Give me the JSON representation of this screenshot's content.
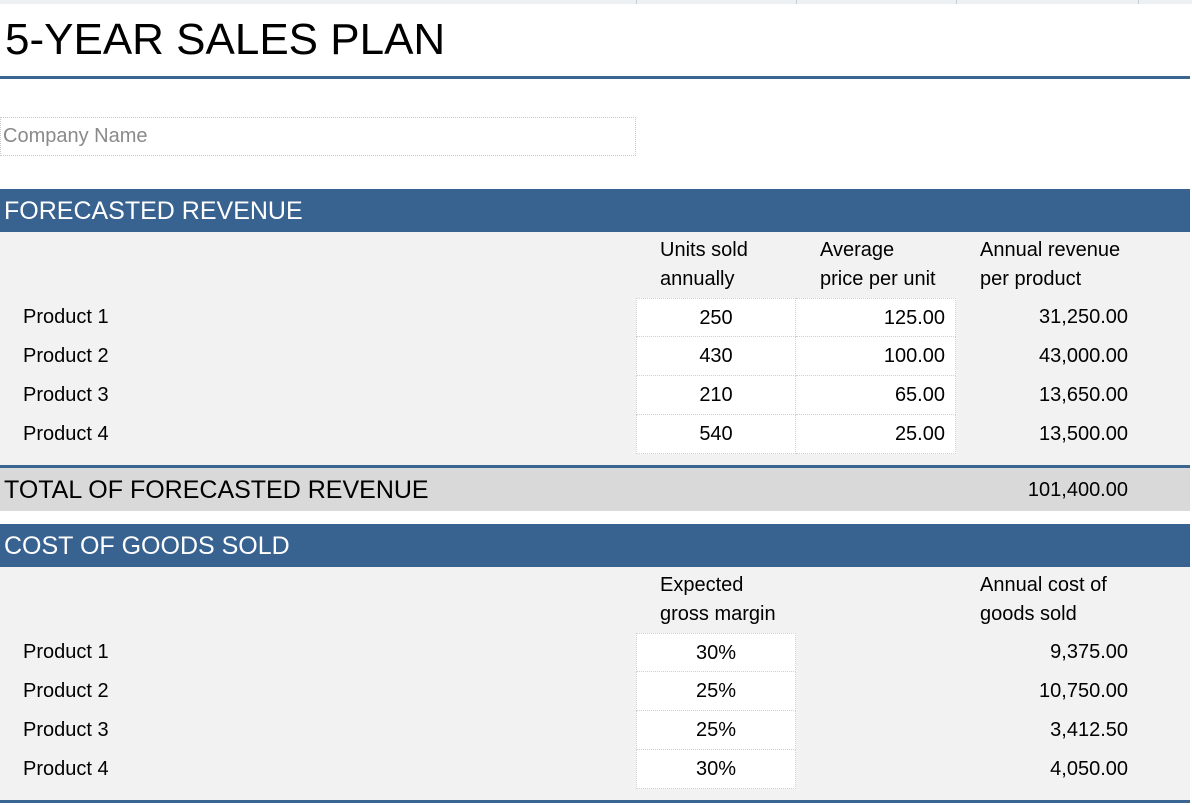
{
  "sheet": {
    "title": "5-YEAR SALES PLAN",
    "company_placeholder": "Company Name"
  },
  "revenue": {
    "header": "FORECASTED REVENUE",
    "columns": {
      "units_line1": "Units sold",
      "units_line2": "annually",
      "price_line1": "Average",
      "price_line2": "price per unit",
      "revenue_line1": "Annual revenue",
      "revenue_line2": "per product"
    },
    "rows": [
      {
        "label": "Product 1",
        "units": "250",
        "price": "125.00",
        "revenue": "31,250.00"
      },
      {
        "label": "Product 2",
        "units": "430",
        "price": "100.00",
        "revenue": "43,000.00"
      },
      {
        "label": "Product 3",
        "units": "210",
        "price": "65.00",
        "revenue": "13,650.00"
      },
      {
        "label": "Product 4",
        "units": "540",
        "price": "25.00",
        "revenue": "13,500.00"
      }
    ],
    "total_label": "TOTAL OF FORECASTED REVENUE",
    "total_value": "101,400.00"
  },
  "cogs": {
    "header": "COST OF GOODS SOLD",
    "columns": {
      "margin_line1": "Expected",
      "margin_line2": "gross margin",
      "cost_line1": "Annual cost of",
      "cost_line2": "goods sold"
    },
    "rows": [
      {
        "label": "Product 1",
        "margin": "30%",
        "cost": "9,375.00"
      },
      {
        "label": "Product 2",
        "margin": "25%",
        "cost": "10,750.00"
      },
      {
        "label": "Product 3",
        "margin": "25%",
        "cost": "3,412.50"
      },
      {
        "label": "Product 4",
        "margin": "30%",
        "cost": "4,050.00"
      }
    ]
  },
  "colors": {
    "accent_blue": "#386391",
    "section_bg": "#f2f2f2",
    "total_bg": "#d9d9d9"
  }
}
